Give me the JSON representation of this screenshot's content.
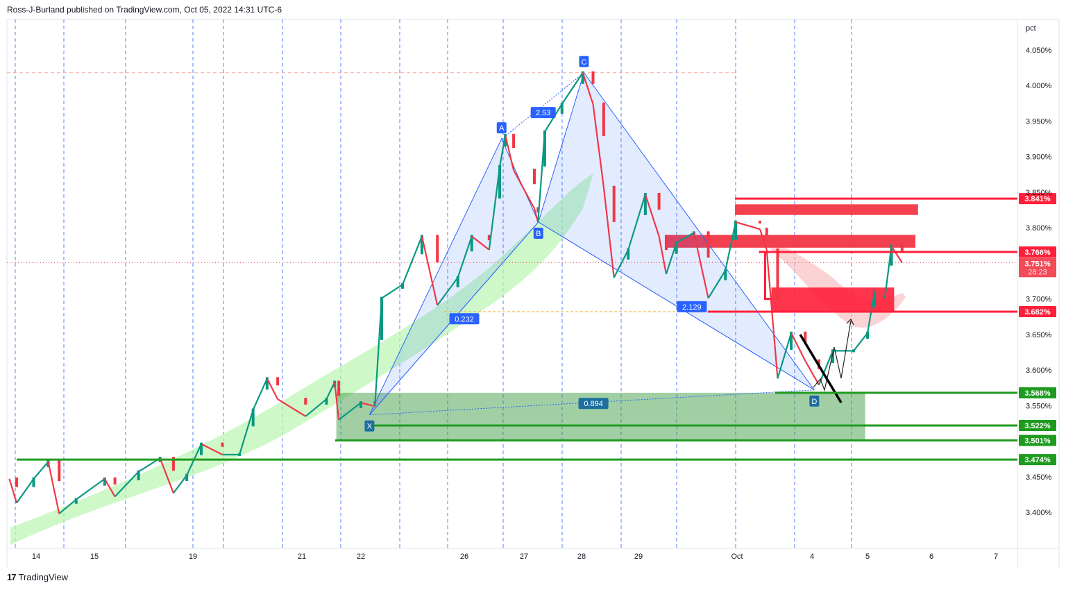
{
  "header": {
    "publisher_line": "Ross-J-Burland published on TradingView.com, Oct 05, 2022 14:31 UTC-6"
  },
  "footer": {
    "brand": "TradingView"
  },
  "colors": {
    "up": "#089981",
    "down": "#f23645",
    "support": "#1e9b1e",
    "resistance": "#ff1f3a",
    "pattern": "#2962ff",
    "grid_session": "#2962ff"
  },
  "chart_data": {
    "type": "line",
    "style": "candlestick",
    "ylabel": "pct",
    "ylim": [
      3.37,
      4.075
    ],
    "y_ticks": [
      "4.050%",
      "4.000%",
      "3.950%",
      "3.900%",
      "3.850%",
      "3.800%",
      "3.700%",
      "3.650%",
      "3.600%",
      "3.550%",
      "3.450%",
      "3.400%"
    ],
    "y_tick_values": [
      4.05,
      4.0,
      3.95,
      3.9,
      3.85,
      3.8,
      3.7,
      3.65,
      3.6,
      3.55,
      3.45,
      3.4
    ],
    "x_ticks": [
      "14",
      "15",
      "19",
      "21",
      "22",
      "26",
      "27",
      "28",
      "29",
      "Oct",
      "4",
      "5",
      "6",
      "7"
    ],
    "x_tick_dates": [
      "2022-09-14",
      "2022-09-15",
      "2022-09-19",
      "2022-09-21",
      "2022-09-22",
      "2022-09-26",
      "2022-09-27",
      "2022-09-28",
      "2022-09-29",
      "2022-10-03",
      "2022-10-04",
      "2022-10-05",
      "2022-10-06",
      "2022-10-07"
    ],
    "grid": false,
    "series": [
      {
        "values": [
          [
            "2022-09-13 13:00",
            3.447
          ],
          [
            "2022-09-13 16:00",
            3.413
          ],
          [
            "2022-09-13 23:00",
            3.447
          ],
          [
            "2022-09-14 05:00",
            3.471
          ],
          [
            "2022-09-14 09:30",
            3.398
          ],
          [
            "2022-09-14 16:30",
            3.418
          ],
          [
            "2022-09-15 05:00",
            3.447
          ],
          [
            "2022-09-15 10:00",
            3.422
          ],
          [
            "2022-09-15 21:30",
            3.457
          ],
          [
            "2022-09-16 08:00",
            3.476
          ],
          [
            "2022-09-16 14:30",
            3.427
          ],
          [
            "2022-09-16 21:00",
            3.452
          ],
          [
            "2022-09-19 03:40",
            3.496
          ],
          [
            "2022-09-19 13:00",
            3.481
          ],
          [
            "2022-09-19 20:30",
            3.481
          ],
          [
            "2022-09-20 02:30",
            3.544
          ],
          [
            "2022-09-20 08:40",
            3.588
          ],
          [
            "2022-09-20 13:20",
            3.559
          ],
          [
            "2022-09-21 01:30",
            3.535
          ],
          [
            "2022-09-21 10:00",
            3.559
          ],
          [
            "2022-09-21 13:20",
            3.583
          ],
          [
            "2022-09-21 15:00",
            3.53
          ],
          [
            "2022-09-22 00:00",
            3.554
          ],
          [
            "2022-09-22 06:30",
            3.549
          ],
          [
            "2022-09-22 09:40",
            3.701
          ],
          [
            "2022-09-22 19:20",
            3.72
          ],
          [
            "2022-09-23 04:20",
            3.788
          ],
          [
            "2022-09-23 11:30",
            3.691
          ],
          [
            "2022-09-23 21:00",
            3.73
          ],
          [
            "2022-09-26 03:00",
            3.788
          ],
          [
            "2022-09-26 10:00",
            3.769
          ],
          [
            "2022-09-26 14:15",
            3.886
          ],
          [
            "2022-09-26 16:30",
            3.93
          ],
          [
            "2022-09-26 19:50",
            3.881
          ],
          [
            "2022-09-27 04:20",
            3.827
          ],
          [
            "2022-09-27 05:50",
            3.808
          ],
          [
            "2022-09-27 08:40",
            3.935
          ],
          [
            "2022-09-27 15:50",
            3.974
          ],
          [
            "2022-09-28 00:30",
            4.018
          ],
          [
            "2022-09-28 04:50",
            3.974
          ],
          [
            "2022-09-28 09:20",
            3.857
          ],
          [
            "2022-09-28 13:40",
            3.73
          ],
          [
            "2022-09-28 19:40",
            3.769
          ],
          [
            "2022-09-29 03:20",
            3.847
          ],
          [
            "2022-09-29 10:00",
            3.788
          ],
          [
            "2022-09-29 13:30",
            3.735
          ],
          [
            "2022-09-29 18:30",
            3.779
          ],
          [
            "2022-09-30 03:00",
            3.793
          ],
          [
            "2022-09-30 10:00",
            3.701
          ],
          [
            "2022-09-30 18:20",
            3.74
          ],
          [
            "2022-09-30 23:20",
            3.808
          ],
          [
            "2022-10-03 07:20",
            3.798
          ],
          [
            "2022-10-03 09:30",
            3.769
          ],
          [
            "2022-10-03 13:00",
            3.588
          ],
          [
            "2022-10-03 17:20",
            3.652
          ],
          [
            "2022-10-03 21:50",
            3.613
          ],
          [
            "2022-10-04 03:00",
            3.579
          ],
          [
            "2022-10-04 09:00",
            3.627
          ],
          [
            "2022-10-04 18:00",
            3.627
          ],
          [
            "2022-10-05 00:00",
            3.652
          ],
          [
            "2022-10-05 02:40",
            3.71
          ],
          [
            "2022-10-05 06:30",
            3.701
          ],
          [
            "2022-10-05 09:00",
            3.774
          ],
          [
            "2022-10-05 13:00",
            3.751
          ]
        ]
      }
    ],
    "price_levels": [
      {
        "label": "3.841%",
        "value": 3.841,
        "kind": "resistance"
      },
      {
        "label": "3.766%",
        "value": 3.766,
        "kind": "resistance"
      },
      {
        "label": "3.682%",
        "value": 3.682,
        "kind": "resistance"
      },
      {
        "label": "3.568%",
        "value": 3.568,
        "kind": "support"
      },
      {
        "label": "3.522%",
        "value": 3.522,
        "kind": "support"
      },
      {
        "label": "3.501%",
        "value": 3.501,
        "kind": "support"
      },
      {
        "label": "3.474%",
        "value": 3.474,
        "kind": "support"
      }
    ],
    "last_price": {
      "label": "3.751%",
      "value": 3.751,
      "countdown": "28:23"
    },
    "harmonic_pattern": {
      "points": [
        {
          "label": "X",
          "date": "2022-09-22 04:00",
          "price": 3.537
        },
        {
          "label": "A",
          "date": "2022-09-26 15:00",
          "price": 3.925
        },
        {
          "label": "B",
          "date": "2022-09-27 06:00",
          "price": 3.808
        },
        {
          "label": "C",
          "date": "2022-09-28 01:00",
          "price": 4.018
        },
        {
          "label": "D",
          "date": "2022-10-04 01:00",
          "price": 3.572
        }
      ],
      "ratios": [
        {
          "label": "0.232",
          "date": "2022-09-26 00:00",
          "price": 3.672
        },
        {
          "label": "2.53",
          "date": "2022-09-27 08:00",
          "price": 3.962
        },
        {
          "label": "2.129",
          "date": "2022-09-30 02:00",
          "price": 3.689
        },
        {
          "label": "0.894",
          "date": "2022-09-28 05:00",
          "price": 3.553
        }
      ]
    }
  }
}
